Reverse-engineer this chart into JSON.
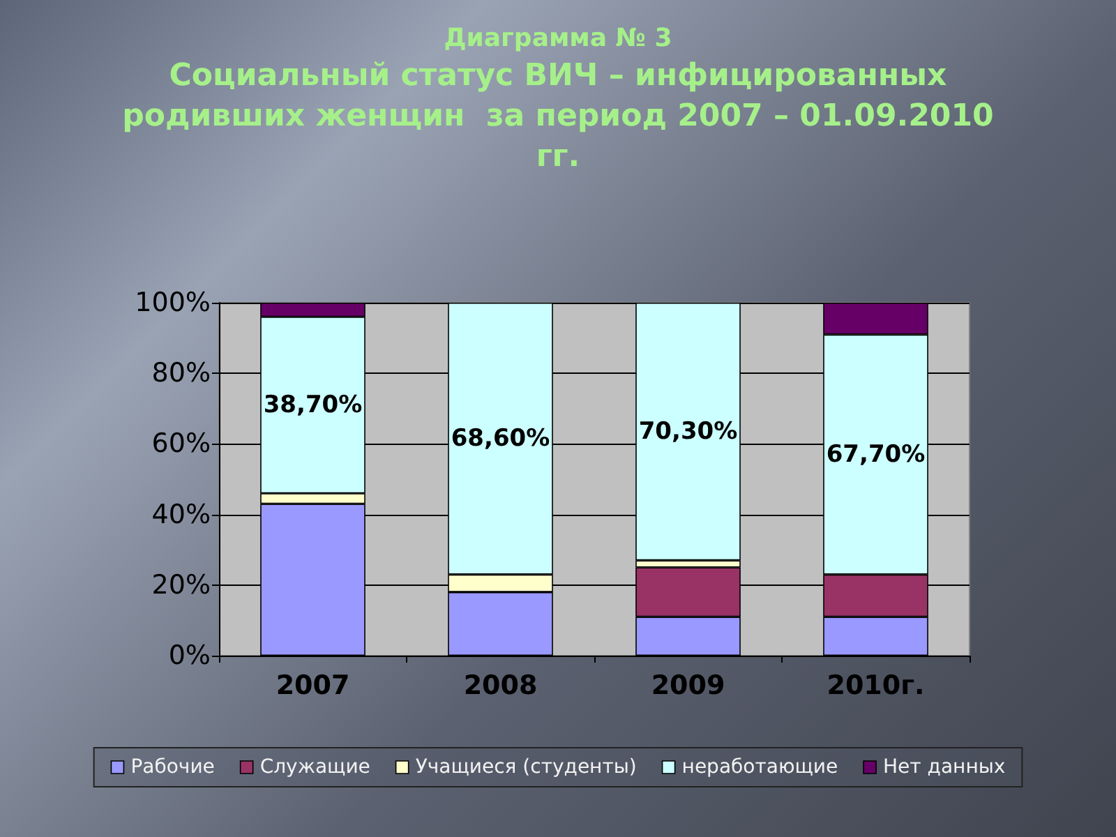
{
  "chart_data": {
    "type": "bar",
    "title": "Диаграмма № 3",
    "subtitle": "Социальный статус ВИЧ – инфицированных родивших женщин  за период 2007 – 01.09.2010 гг.",
    "categories": [
      "2007",
      "2008",
      "2009",
      "2010г."
    ],
    "stacked": true,
    "series": [
      {
        "name": "Рабочие",
        "color": "#9999ff",
        "values": [
          43,
          18,
          11,
          11
        ]
      },
      {
        "name": "Служащие",
        "color": "#993366",
        "values": [
          0,
          0,
          14,
          12
        ]
      },
      {
        "name": "Учащиеся (студенты)",
        "color": "#ffffcc",
        "values": [
          3,
          5,
          2,
          0
        ]
      },
      {
        "name": "неработающие",
        "color": "#ccffff",
        "values": [
          50,
          77,
          73,
          68
        ]
      },
      {
        "name": "Нет данных",
        "color": "#660066",
        "values": [
          4,
          0,
          0,
          9
        ]
      }
    ],
    "annotations": [
      "38,70%",
      "68,60%",
      "70,30%",
      "67,70%"
    ],
    "ylim": [
      0,
      100
    ],
    "yticks": [
      {
        "value": 0,
        "label": "0%"
      },
      {
        "value": 20,
        "label": "20%"
      },
      {
        "value": 40,
        "label": "40%"
      },
      {
        "value": 60,
        "label": "60%"
      },
      {
        "value": 80,
        "label": "80%"
      },
      {
        "value": 100,
        "label": "100%"
      }
    ],
    "grid": "y",
    "legend": "bottom"
  }
}
